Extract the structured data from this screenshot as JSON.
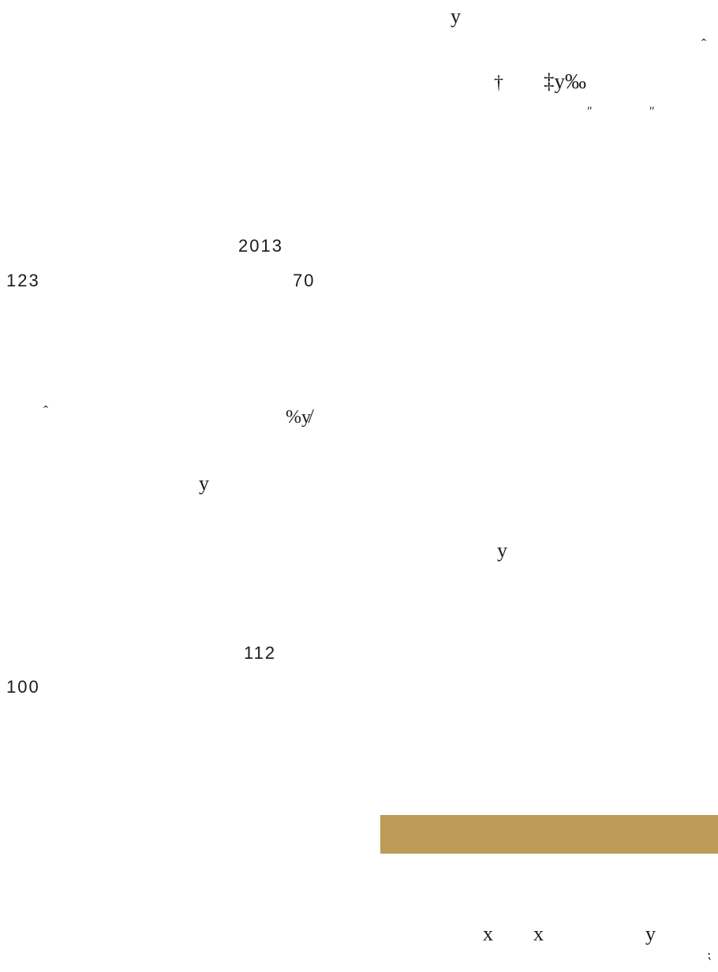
{
  "text": {
    "top_y": "y",
    "top_caret": "ˆ",
    "dagger": "†",
    "ddagger_y_permille": "‡y‰",
    "quote_left": "″",
    "quote_right": "″",
    "year": "2013",
    "num_123": "123",
    "num_70": "70",
    "mid_caret": "ˆ",
    "percent_y": "%y̸",
    "mid_y": "y",
    "right_y": "y",
    "num_112": "112",
    "num_100": "100",
    "bottom_x1": "x",
    "bottom_x2": "x",
    "bottom_y": "y",
    "corner_mark": "⁏"
  },
  "colors": {
    "band": "#bf9b5a",
    "text": "#1a1a1a"
  }
}
